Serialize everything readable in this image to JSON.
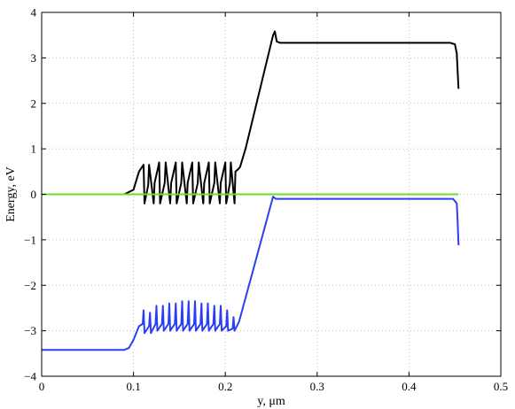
{
  "chart_data": {
    "type": "line",
    "xlabel": "y, μm",
    "ylabel": "Energy, eV",
    "xlim": [
      0,
      0.5
    ],
    "ylim": [
      -4,
      4
    ],
    "x_ticks": [
      0,
      0.1,
      0.2,
      0.3,
      0.4,
      0.5
    ],
    "x_tick_labels": [
      "0",
      "0.1",
      "0.2",
      "0.3",
      "0.4",
      "0.5"
    ],
    "y_ticks": [
      -4,
      -3,
      -2,
      -1,
      0,
      1,
      2,
      3,
      4
    ],
    "y_tick_labels": [
      "−4",
      "−3",
      "−2",
      "−1",
      "0",
      "1",
      "2",
      "3",
      "4"
    ],
    "grid": true,
    "series": [
      {
        "color": "#000000",
        "x": [
          0.09,
          0.1,
          0.106,
          0.111,
          0.112,
          0.116,
          0.117,
          0.122,
          0.123,
          0.128,
          0.129,
          0.134,
          0.135,
          0.14,
          0.141,
          0.146,
          0.147,
          0.152,
          0.153,
          0.158,
          0.159,
          0.164,
          0.165,
          0.17,
          0.171,
          0.176,
          0.177,
          0.182,
          0.183,
          0.188,
          0.189,
          0.194,
          0.195,
          0.2,
          0.201,
          0.205,
          0.206,
          0.21,
          0.211,
          0.214,
          0.216,
          0.222,
          0.252,
          0.254,
          0.256,
          0.26,
          0.3,
          0.4,
          0.445,
          0.45,
          0.452,
          0.453,
          0.454
        ],
        "y": [
          0.0,
          0.1,
          0.5,
          0.65,
          -0.2,
          0.2,
          0.65,
          -0.2,
          0.25,
          0.7,
          -0.2,
          0.25,
          0.7,
          -0.2,
          0.25,
          0.7,
          -0.2,
          0.25,
          0.7,
          -0.2,
          0.25,
          0.7,
          -0.2,
          0.25,
          0.7,
          -0.2,
          0.25,
          0.7,
          -0.2,
          0.25,
          0.7,
          -0.2,
          0.25,
          0.7,
          -0.2,
          0.25,
          0.7,
          -0.2,
          0.5,
          0.55,
          0.6,
          1.0,
          3.5,
          3.58,
          3.36,
          3.33,
          3.33,
          3.33,
          3.33,
          3.3,
          3.1,
          2.7,
          2.32
        ]
      },
      {
        "color": "#2a3ff0",
        "x": [
          0.0,
          0.09,
          0.095,
          0.1,
          0.106,
          0.11,
          0.111,
          0.112,
          0.117,
          0.118,
          0.119,
          0.124,
          0.125,
          0.126,
          0.131,
          0.132,
          0.133,
          0.138,
          0.139,
          0.14,
          0.145,
          0.146,
          0.147,
          0.152,
          0.153,
          0.154,
          0.159,
          0.16,
          0.161,
          0.166,
          0.167,
          0.168,
          0.173,
          0.174,
          0.175,
          0.18,
          0.181,
          0.182,
          0.187,
          0.188,
          0.189,
          0.194,
          0.195,
          0.196,
          0.201,
          0.202,
          0.203,
          0.208,
          0.209,
          0.21,
          0.215,
          0.25,
          0.252,
          0.255,
          0.3,
          0.4,
          0.448,
          0.452,
          0.453,
          0.454
        ],
        "y": [
          -3.42,
          -3.42,
          -3.38,
          -3.2,
          -2.9,
          -2.85,
          -2.55,
          -3.05,
          -2.9,
          -2.6,
          -3.05,
          -2.85,
          -2.45,
          -3.0,
          -2.85,
          -2.45,
          -3.0,
          -2.85,
          -2.4,
          -3.0,
          -2.85,
          -2.4,
          -3.0,
          -2.85,
          -2.35,
          -3.0,
          -2.85,
          -2.35,
          -3.0,
          -2.85,
          -2.35,
          -3.0,
          -2.85,
          -2.4,
          -3.0,
          -2.85,
          -2.4,
          -3.0,
          -2.85,
          -2.45,
          -3.0,
          -2.85,
          -2.45,
          -3.0,
          -2.9,
          -2.55,
          -3.0,
          -2.95,
          -2.7,
          -3.0,
          -2.8,
          -0.2,
          -0.05,
          -0.1,
          -0.1,
          -0.1,
          -0.1,
          -0.2,
          -0.6,
          -1.12
        ]
      },
      {
        "color": "#6fdc2a",
        "x": [
          0.0,
          0.454
        ],
        "y": [
          0.0,
          0.0
        ]
      }
    ]
  }
}
